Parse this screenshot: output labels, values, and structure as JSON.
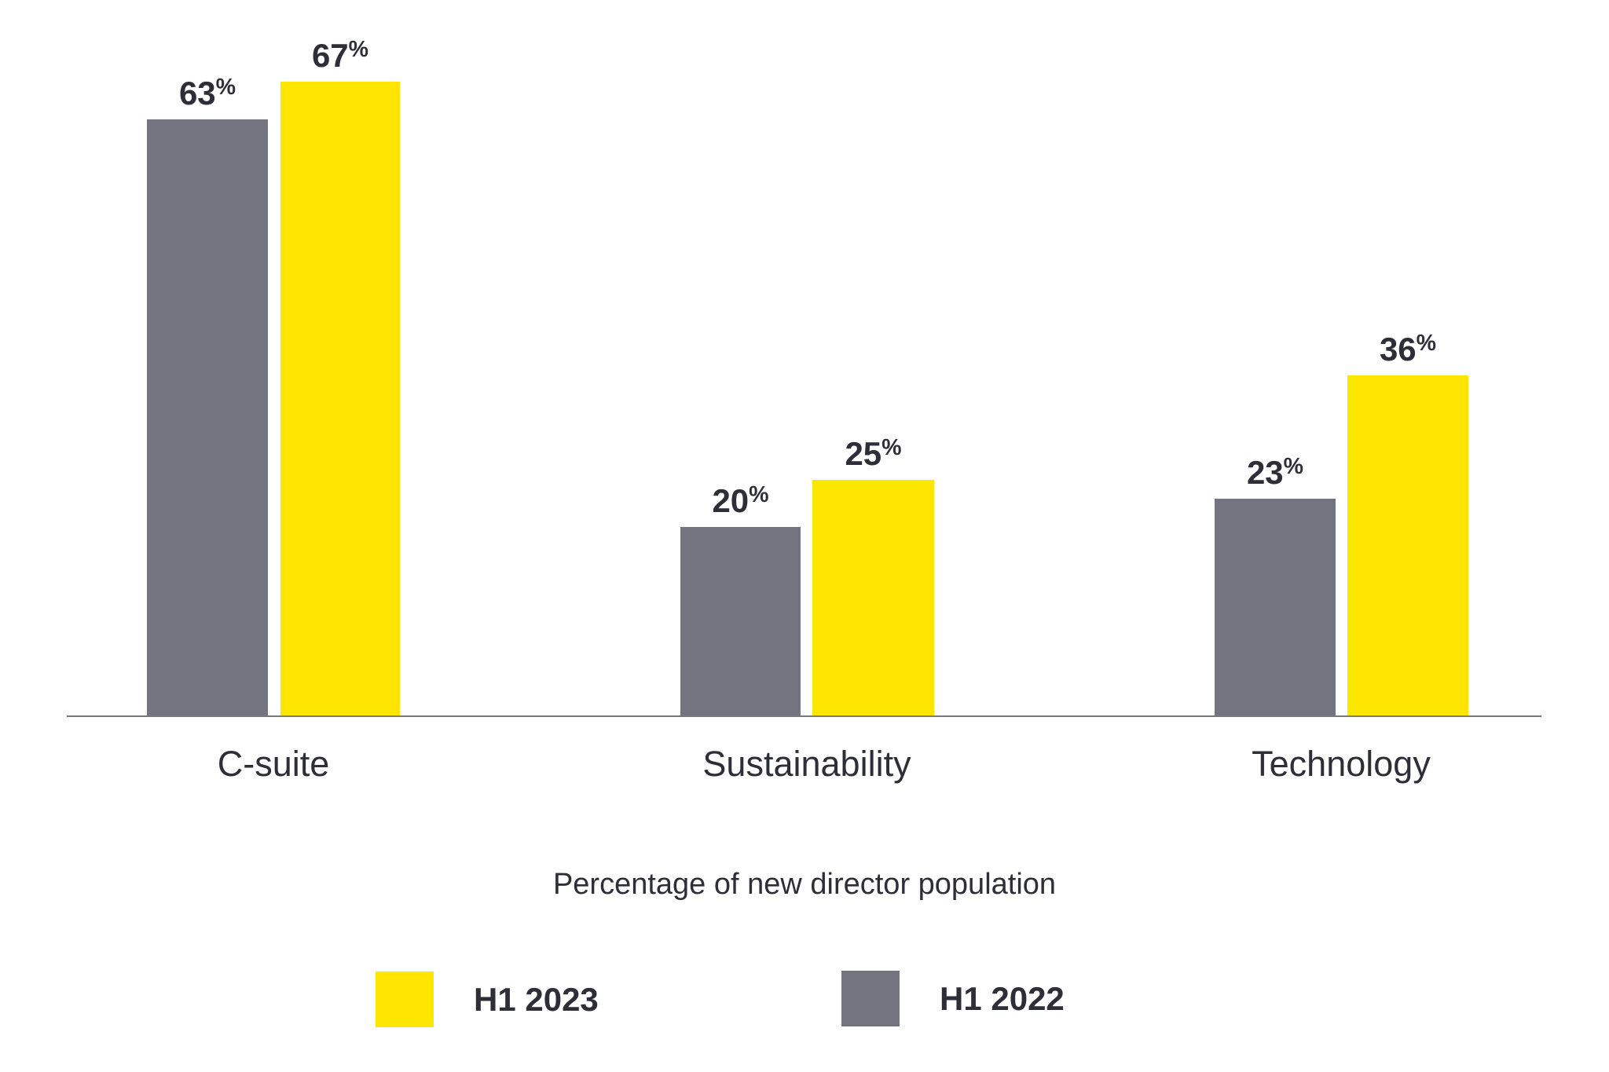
{
  "chart_data": {
    "type": "bar",
    "categories": [
      "C-suite",
      "Sustainability",
      "Technology"
    ],
    "series": [
      {
        "name": "H1 2022",
        "color": "#747480",
        "values": [
          63,
          20,
          23
        ]
      },
      {
        "name": "H1 2023",
        "color": "#FFE600",
        "values": [
          67,
          25,
          36
        ]
      }
    ],
    "value_suffix": "%",
    "xlabel": "Percentage of new director population",
    "ylabel": "",
    "title": "",
    "ylim": [
      0,
      75
    ],
    "grid": false,
    "legend_position": "bottom-center",
    "legend_order": [
      "H1 2023",
      "H1 2022"
    ]
  },
  "caption": "Percentage of new director population",
  "legend": {
    "items": [
      {
        "label": "H1 2023",
        "color": "#FFE600"
      },
      {
        "label": "H1 2022",
        "color": "#747480"
      }
    ]
  },
  "colors": {
    "yellow": "#FFE600",
    "gray": "#747480",
    "text": "#2E2E38",
    "axis_line": "#7A7A84"
  }
}
